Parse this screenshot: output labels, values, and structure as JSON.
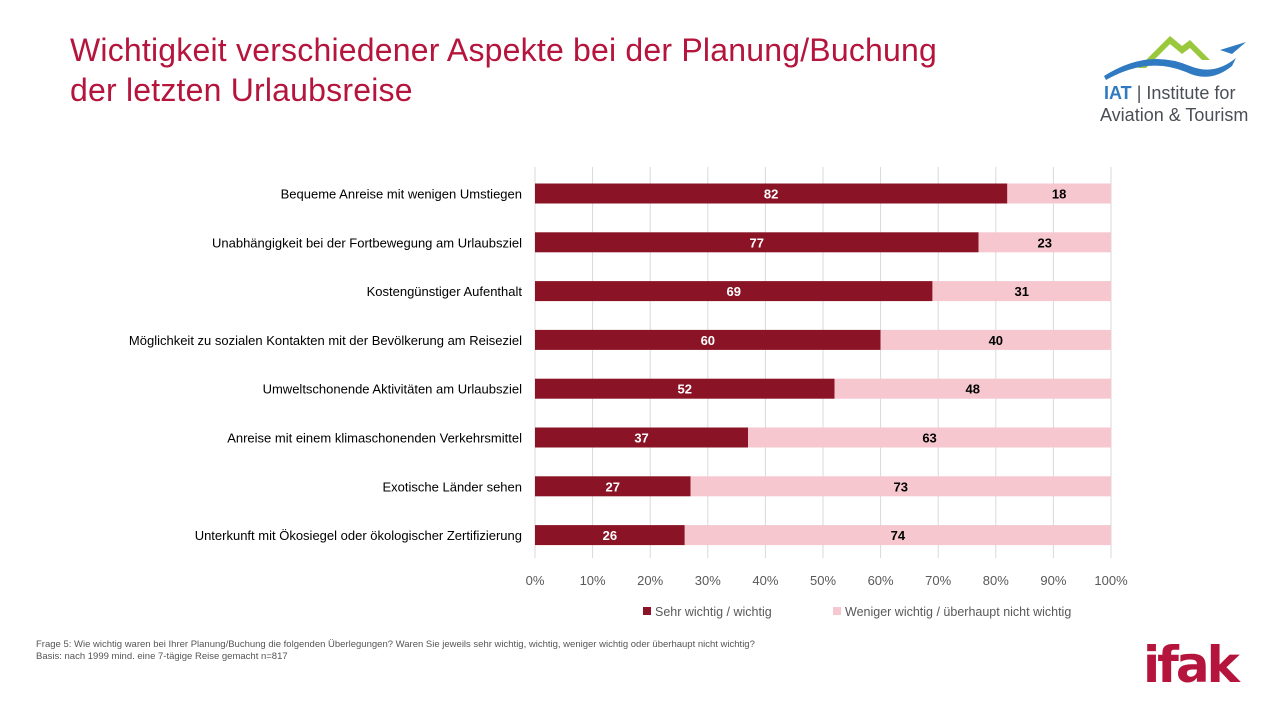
{
  "header": {
    "title_line1": "Wichtigkeit verschiedener Aspekte bei der Planung/Buchung",
    "title_line2": "der letzten Urlaubsreise"
  },
  "logo": {
    "abbr": "IAT",
    "separator": "|",
    "name_part1": "Institute for",
    "name_part2": "Aviation & Tourism",
    "colors": {
      "mountain": "#9ac83c",
      "swoosh": "#2f7ac0"
    }
  },
  "chart_data": {
    "type": "bar",
    "orientation": "horizontal",
    "stacked": true,
    "categories": [
      "Bequeme Anreise mit wenigen Umstiegen",
      "Unabhängigkeit bei der Fortbewegung am Urlaubsziel",
      "Kostengünstiger Aufenthalt",
      "Möglichkeit zu sozialen Kontakten mit der Bevölkerung am Reiseziel",
      "Umweltschonende Aktivitäten am Urlaubsziel",
      "Anreise mit einem klimaschonenden Verkehrsmittel",
      "Exotische Länder sehen",
      "Unterkunft mit Ökosiegel oder ökologischer Zertifizierung"
    ],
    "series": [
      {
        "name": "Sehr wichtig / wichtig",
        "color": "#8a1426",
        "label_color": "#ffffff",
        "values": [
          82,
          77,
          69,
          60,
          52,
          37,
          27,
          26
        ]
      },
      {
        "name": "Weniger wichtig / überhaupt nicht wichtig",
        "color": "#f6c7cf",
        "label_color": "#000000",
        "values": [
          18,
          23,
          31,
          40,
          48,
          63,
          73,
          74
        ]
      }
    ],
    "xlim": [
      0,
      100
    ],
    "x_ticks": [
      "0%",
      "10%",
      "20%",
      "30%",
      "40%",
      "50%",
      "60%",
      "70%",
      "80%",
      "90%",
      "100%"
    ],
    "grid": true,
    "legend_position": "bottom"
  },
  "footnote": {
    "line1": "Frage 5: Wie wichtig waren bei Ihrer Planung/Buchung die folgenden Überlegungen? Waren Sie jeweils sehr wichtig, wichtig, weniger wichtig oder überhaupt nicht wichtig?",
    "line2": "Basis: nach 1999 mind. eine 7-tägige Reise gemacht n=817"
  },
  "brand": {
    "name": "ifak",
    "color": "#b5153c"
  }
}
